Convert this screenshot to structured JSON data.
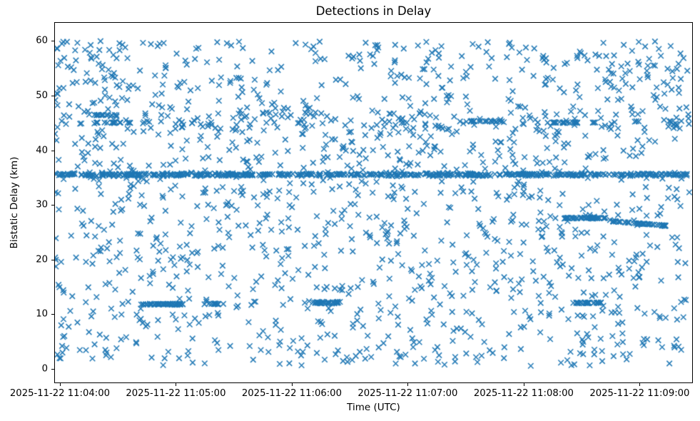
{
  "figure": {
    "background": "#ffffff"
  },
  "chart_data": {
    "type": "scatter",
    "title": "Detections in Delay",
    "xlabel": "Time (UTC)",
    "ylabel": "Bistatic Delay (km)",
    "marker": "x",
    "marker_color": "#1f77b4",
    "marker_size_px": 7.5,
    "grid": false,
    "legend": false,
    "x_tick_labels": [
      "2025-11-22 11:04:00",
      "2025-11-22 11:05:00",
      "2025-11-22 11:06:00",
      "2025-11-22 11:07:00",
      "2025-11-22 11:08:00",
      "2025-11-22 11:09:00"
    ],
    "x_tick_minutes": [
      0,
      1,
      2,
      3,
      4,
      5
    ],
    "y_tick_labels": [
      "0",
      "10",
      "20",
      "30",
      "40",
      "50",
      "60"
    ],
    "y_tick_values": [
      0,
      10,
      20,
      30,
      40,
      50,
      60
    ],
    "xlim_minutes_from_11_04": [
      -0.049,
      5.459
    ],
    "ylim_km": [
      -2.61,
      63.44
    ],
    "n_points_approx": 2300,
    "notable_features": [
      "very dense continuous horizontal band of detections at ~35.5 km across the whole 11:04-11:09 interval",
      "diffuse denser zone around 44-47 km for the whole interval",
      "dense short track at ~11.9 km from ~11:04:42 to ~11:05:04 and again near 11:05:17-11:05:25",
      "dense blob at ~12.1 km near 11:06:11-11:06:25 and another at ~12.1 km near 11:08:24-11:08:40",
      "dense track at ~27.6 km from ~11:08:20 to ~11:08:42",
      "slowly descending track from ~27.0 km to ~26.2 km between ~11:08:46 and ~11:09:14",
      "otherwise roughly uniform random detections between 0.5 and 60 km"
    ],
    "generation": {
      "seed": 7,
      "clusters": [
        {
          "kind": "uniform",
          "n": 1380,
          "x": [
            -0.045,
            5.43
          ],
          "y_range": [
            0.5,
            60.0
          ]
        },
        {
          "kind": "segment",
          "n": 520,
          "x": [
            -0.045,
            5.43
          ],
          "y": 35.55,
          "spread": 0.3
        },
        {
          "kind": "uniform",
          "n": 110,
          "x": [
            -0.045,
            5.43
          ],
          "y_range": [
            43.8,
            47.3
          ]
        },
        {
          "kind": "segment",
          "n": 48,
          "x": [
            0.7,
            1.06
          ],
          "y": 11.85,
          "spread": 0.15
        },
        {
          "kind": "segment",
          "n": 12,
          "x": [
            1.28,
            1.41
          ],
          "y": 11.9,
          "spread": 0.12
        },
        {
          "kind": "segment",
          "n": 30,
          "x": [
            2.18,
            2.41
          ],
          "y": 12.15,
          "spread": 0.22
        },
        {
          "kind": "segment",
          "n": 28,
          "x": [
            4.4,
            4.67
          ],
          "y": 12.1,
          "spread": 0.12
        },
        {
          "kind": "segment",
          "n": 42,
          "x": [
            4.34,
            4.71
          ],
          "y": 27.6,
          "spread": 0.13
        },
        {
          "kind": "trend",
          "n": 48,
          "x": [
            4.77,
            5.23
          ],
          "y_start": 27.0,
          "y_end": 26.2,
          "spread": 0.09
        },
        {
          "kind": "segment",
          "n": 20,
          "x": [
            3.4,
            3.8
          ],
          "y": 45.3,
          "spread": 0.12
        },
        {
          "kind": "segment",
          "n": 20,
          "x": [
            4.2,
            4.62
          ],
          "y": 45.05,
          "spread": 0.12
        },
        {
          "kind": "segment",
          "n": 18,
          "x": [
            0.22,
            0.62
          ],
          "y": 45.05,
          "spread": 0.1
        },
        {
          "kind": "segment",
          "n": 14,
          "x": [
            0.25,
            0.55
          ],
          "y": 46.45,
          "spread": 0.1
        },
        {
          "kind": "uniform",
          "n": 30,
          "x": [
            -0.04,
            0.55
          ],
          "y_range": [
            48.0,
            60.0
          ]
        },
        {
          "kind": "uniform",
          "n": 40,
          "x": [
            4.72,
            5.43
          ],
          "y_range": [
            44.0,
            60.2
          ]
        }
      ]
    }
  }
}
